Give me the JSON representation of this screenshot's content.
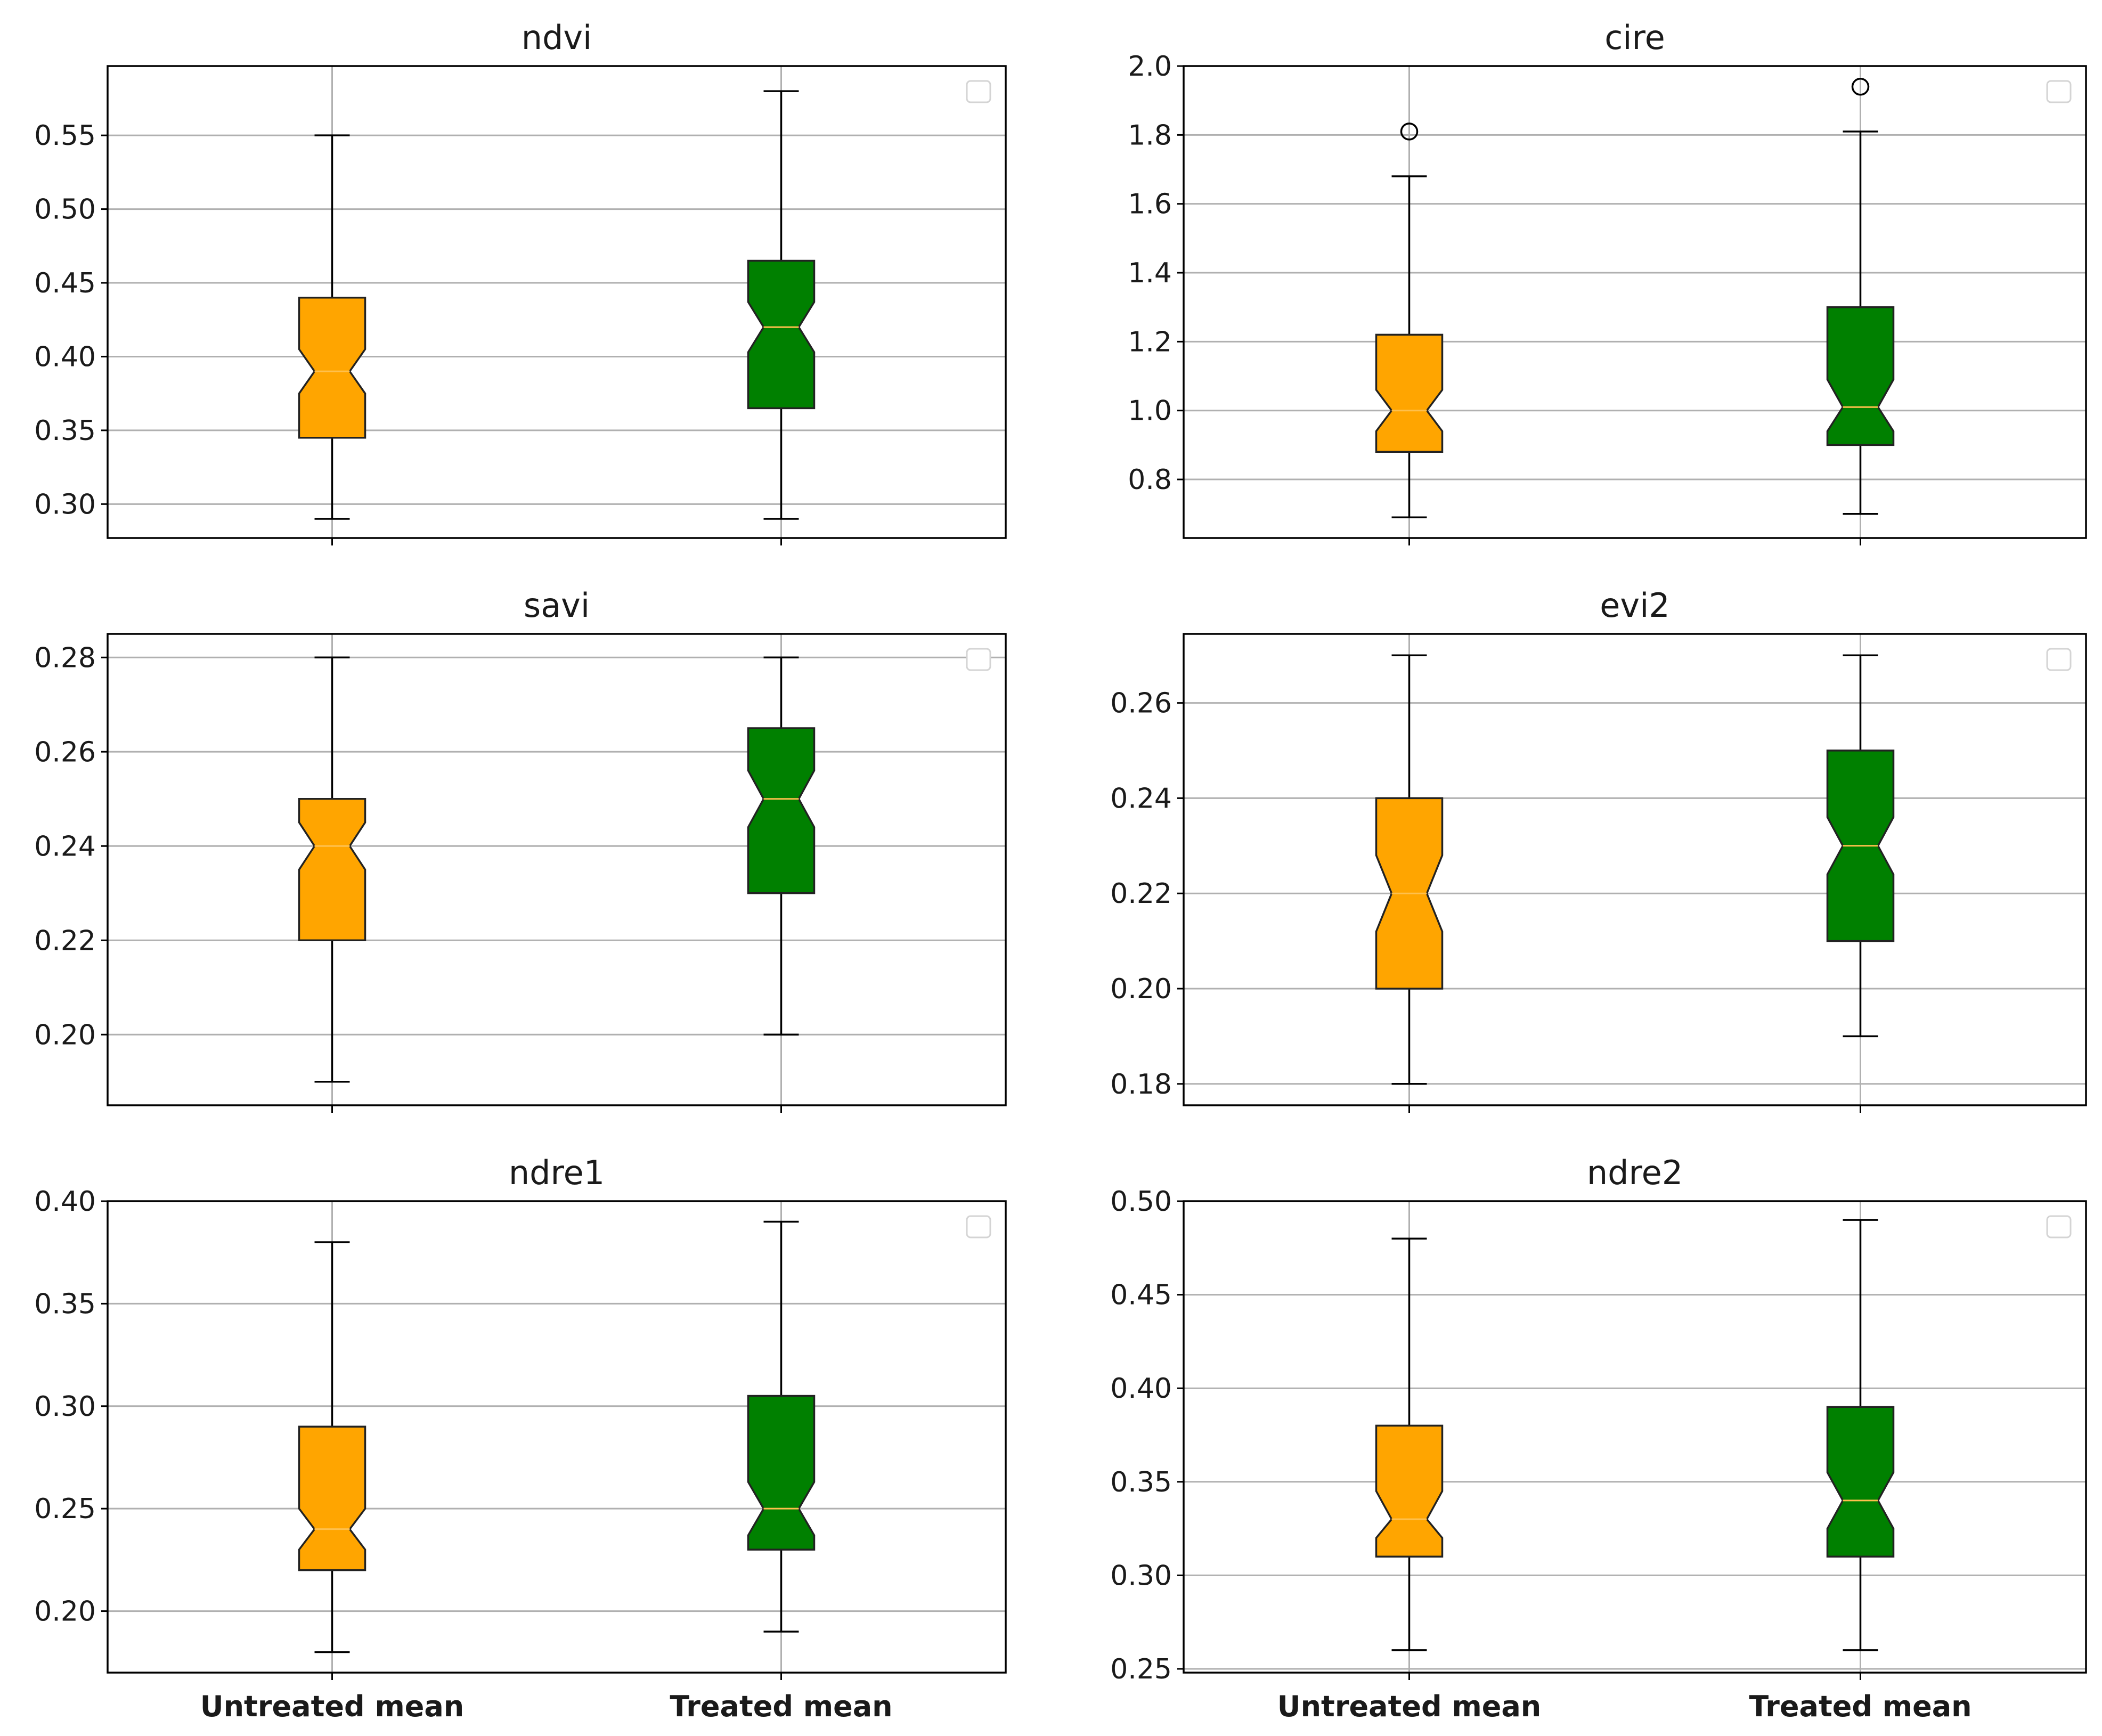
{
  "chart_data": [
    {
      "type": "boxplot",
      "title": "ndvi",
      "categories": [
        "Untreated mean",
        "Treated mean"
      ],
      "show_xticklabels": false,
      "yticks": [
        0.3,
        0.35,
        0.4,
        0.45,
        0.5,
        0.55
      ],
      "ytick_labels": [
        "0.30",
        "0.35",
        "0.40",
        "0.45",
        "0.50",
        "0.55"
      ],
      "ylim": [
        0.277,
        0.597
      ],
      "grid": true,
      "legend": "top-right (empty)",
      "notched": true,
      "boxes": [
        {
          "name": "Untreated mean",
          "color": "#FFA500",
          "whisker_low": 0.29,
          "q1": 0.345,
          "median": 0.39,
          "q3": 0.44,
          "whisker_high": 0.55,
          "notch_low": 0.375,
          "notch_high": 0.405,
          "outliers": []
        },
        {
          "name": "Treated mean",
          "color": "#008000",
          "whisker_low": 0.29,
          "q1": 0.365,
          "median": 0.42,
          "q3": 0.465,
          "whisker_high": 0.58,
          "notch_low": 0.403,
          "notch_high": 0.437,
          "outliers": []
        }
      ]
    },
    {
      "type": "boxplot",
      "title": "cire",
      "categories": [
        "Untreated mean",
        "Treated mean"
      ],
      "show_xticklabels": false,
      "yticks": [
        0.8,
        1.0,
        1.2,
        1.4,
        1.6,
        1.8,
        2.0
      ],
      "ytick_labels": [
        "0.8",
        "1.0",
        "1.2",
        "1.4",
        "1.6",
        "1.8",
        "2.0"
      ],
      "ylim": [
        0.63,
        2.0
      ],
      "grid": true,
      "legend": "top-right (empty)",
      "notched": true,
      "boxes": [
        {
          "name": "Untreated mean",
          "color": "#FFA500",
          "whisker_low": 0.69,
          "q1": 0.88,
          "median": 1.0,
          "q3": 1.22,
          "whisker_high": 1.68,
          "notch_low": 0.94,
          "notch_high": 1.06,
          "outliers": [
            1.81
          ]
        },
        {
          "name": "Treated mean",
          "color": "#008000",
          "whisker_low": 0.7,
          "q1": 0.9,
          "median": 1.01,
          "q3": 1.3,
          "whisker_high": 1.81,
          "notch_low": 0.94,
          "notch_high": 1.09,
          "outliers": [
            1.94
          ]
        }
      ]
    },
    {
      "type": "boxplot",
      "title": "savi",
      "categories": [
        "Untreated mean",
        "Treated mean"
      ],
      "show_xticklabels": false,
      "yticks": [
        0.2,
        0.22,
        0.24,
        0.26,
        0.28
      ],
      "ytick_labels": [
        "0.20",
        "0.22",
        "0.24",
        "0.26",
        "0.28"
      ],
      "ylim": [
        0.185,
        0.285
      ],
      "grid": true,
      "legend": "top-right (empty)",
      "notched": true,
      "boxes": [
        {
          "name": "Untreated mean",
          "color": "#FFA500",
          "whisker_low": 0.19,
          "q1": 0.22,
          "median": 0.24,
          "q3": 0.25,
          "whisker_high": 0.28,
          "notch_low": 0.235,
          "notch_high": 0.245,
          "outliers": []
        },
        {
          "name": "Treated mean",
          "color": "#008000",
          "whisker_low": 0.2,
          "q1": 0.23,
          "median": 0.25,
          "q3": 0.265,
          "whisker_high": 0.28,
          "notch_low": 0.244,
          "notch_high": 0.256,
          "outliers": []
        }
      ]
    },
    {
      "type": "boxplot",
      "title": "evi2",
      "categories": [
        "Untreated mean",
        "Treated mean"
      ],
      "show_xticklabels": false,
      "yticks": [
        0.18,
        0.2,
        0.22,
        0.24,
        0.26
      ],
      "ytick_labels": [
        "0.18",
        "0.20",
        "0.22",
        "0.24",
        "0.26"
      ],
      "ylim": [
        0.1755,
        0.2745
      ],
      "grid": true,
      "legend": "top-right (empty)",
      "notched": true,
      "boxes": [
        {
          "name": "Untreated mean",
          "color": "#FFA500",
          "whisker_low": 0.18,
          "q1": 0.2,
          "median": 0.22,
          "q3": 0.24,
          "whisker_high": 0.27,
          "notch_low": 0.212,
          "notch_high": 0.228,
          "outliers": []
        },
        {
          "name": "Treated mean",
          "color": "#008000",
          "whisker_low": 0.19,
          "q1": 0.21,
          "median": 0.23,
          "q3": 0.25,
          "whisker_high": 0.27,
          "notch_low": 0.224,
          "notch_high": 0.236,
          "outliers": []
        }
      ]
    },
    {
      "type": "boxplot",
      "title": "ndre1",
      "categories": [
        "Untreated mean",
        "Treated mean"
      ],
      "show_xticklabels": true,
      "yticks": [
        0.2,
        0.25,
        0.3,
        0.35,
        0.4
      ],
      "ytick_labels": [
        "0.20",
        "0.25",
        "0.30",
        "0.35",
        "0.40"
      ],
      "ylim": [
        0.17,
        0.4
      ],
      "grid": true,
      "legend": "top-right (empty)",
      "notched": true,
      "boxes": [
        {
          "name": "Untreated mean",
          "color": "#FFA500",
          "whisker_low": 0.18,
          "q1": 0.22,
          "median": 0.24,
          "q3": 0.29,
          "whisker_high": 0.38,
          "notch_low": 0.23,
          "notch_high": 0.25,
          "outliers": []
        },
        {
          "name": "Treated mean",
          "color": "#008000",
          "whisker_low": 0.19,
          "q1": 0.23,
          "median": 0.25,
          "q3": 0.305,
          "whisker_high": 0.39,
          "notch_low": 0.237,
          "notch_high": 0.263,
          "outliers": []
        }
      ]
    },
    {
      "type": "boxplot",
      "title": "ndre2",
      "categories": [
        "Untreated mean",
        "Treated mean"
      ],
      "show_xticklabels": true,
      "yticks": [
        0.25,
        0.3,
        0.35,
        0.4,
        0.45,
        0.5
      ],
      "ytick_labels": [
        "0.25",
        "0.30",
        "0.35",
        "0.40",
        "0.45",
        "0.50"
      ],
      "ylim": [
        0.248,
        0.5
      ],
      "grid": true,
      "legend": "top-right (empty)",
      "notched": true,
      "boxes": [
        {
          "name": "Untreated mean",
          "color": "#FFA500",
          "whisker_low": 0.26,
          "q1": 0.31,
          "median": 0.33,
          "q3": 0.38,
          "whisker_high": 0.48,
          "notch_low": 0.32,
          "notch_high": 0.345,
          "outliers": []
        },
        {
          "name": "Treated mean",
          "color": "#008000",
          "whisker_low": 0.26,
          "q1": 0.31,
          "median": 0.34,
          "q3": 0.39,
          "whisker_high": 0.49,
          "notch_low": 0.325,
          "notch_high": 0.355,
          "outliers": []
        }
      ]
    }
  ]
}
